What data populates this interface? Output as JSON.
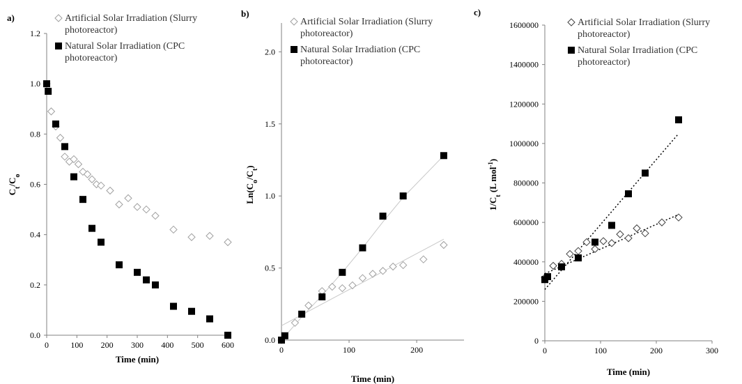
{
  "chart_data": [
    {
      "type": "scatter",
      "panel_label": "a)",
      "xlabel": "Time (min)",
      "ylabel_main": "C",
      "ylabel_sub1": "t",
      "ylabel_mid": "/C",
      "ylabel_sub2": "o",
      "xlim": [
        0,
        600
      ],
      "ylim": [
        0,
        1.2
      ],
      "xticks": [
        0,
        100,
        200,
        300,
        400,
        500,
        600
      ],
      "yticks": [
        0,
        0.2,
        0.4,
        0.6,
        0.8,
        1.0,
        1.2
      ],
      "ytick_labels": [
        "0.0",
        "0.2",
        "0.4",
        "0.6",
        "0.8",
        "1.0",
        "1.2"
      ],
      "legend_position": "top-right",
      "series": [
        {
          "name_line1": "Artificial Solar Irradiation (Slurry",
          "name_line2": "photoreactor)",
          "marker": "open-diamond",
          "color": "#a0a0a0",
          "x": [
            0,
            15,
            30,
            45,
            60,
            75,
            90,
            105,
            120,
            135,
            150,
            165,
            180,
            210,
            240,
            270,
            300,
            330,
            360,
            420,
            480,
            540,
            600
          ],
          "y": [
            1.0,
            0.89,
            0.83,
            0.785,
            0.71,
            0.69,
            0.7,
            0.68,
            0.65,
            0.64,
            0.62,
            0.6,
            0.595,
            0.575,
            0.52,
            0.545,
            0.51,
            0.5,
            0.475,
            0.42,
            0.39,
            0.395,
            0.37
          ]
        },
        {
          "name_line1": "Natural Solar Irradiation (CPC",
          "name_line2": "photoreactor)",
          "marker": "filled-square",
          "color": "#000000",
          "x": [
            0,
            5,
            30,
            60,
            90,
            120,
            150,
            180,
            240,
            300,
            330,
            360,
            420,
            480,
            540,
            600
          ],
          "y": [
            1.0,
            0.97,
            0.84,
            0.75,
            0.63,
            0.54,
            0.425,
            0.37,
            0.28,
            0.25,
            0.22,
            0.2,
            0.115,
            0.095,
            0.065,
            0.0
          ]
        }
      ]
    },
    {
      "type": "scatter",
      "panel_label": "b)",
      "xlabel": "Time (min)",
      "ylabel_main": "Ln(C",
      "ylabel_sub1": "o",
      "ylabel_mid": "/C",
      "ylabel_sub2": "t",
      "ylabel_end": ")",
      "xlim": [
        0,
        270
      ],
      "ylim": [
        0,
        2.2
      ],
      "xticks": [
        0,
        100,
        200
      ],
      "yticks": [
        0,
        0.5,
        1.0,
        1.5,
        2.0
      ],
      "ytick_labels": [
        "0.0",
        "0.5",
        "1.0",
        "1.5",
        "2.0"
      ],
      "legend_position": "top-right",
      "series": [
        {
          "name_line1": "Artificial Solar Irradiation (Slurry",
          "name_line2": "photoreactor)",
          "marker": "open-diamond",
          "color": "#a0a0a0",
          "x": [
            0,
            20,
            40,
            60,
            75,
            90,
            105,
            120,
            135,
            150,
            165,
            180,
            210,
            240
          ],
          "y": [
            0.0,
            0.12,
            0.24,
            0.34,
            0.37,
            0.36,
            0.38,
            0.43,
            0.46,
            0.48,
            0.51,
            0.52,
            0.56,
            0.66
          ],
          "trend": [
            [
              0,
              0.1
            ],
            [
              240,
              0.7
            ]
          ]
        },
        {
          "name_line1": "Natural Solar Irradiation (CPC",
          "name_line2": "photoreactor)",
          "marker": "filled-square",
          "color": "#000000",
          "x": [
            0,
            5,
            30,
            60,
            90,
            120,
            150,
            180,
            240
          ],
          "y": [
            0.0,
            0.03,
            0.18,
            0.3,
            0.47,
            0.64,
            0.86,
            1.0,
            1.28
          ],
          "trend_points": [
            [
              0,
              0.0
            ],
            [
              30,
              0.16
            ],
            [
              60,
              0.31
            ],
            [
              90,
              0.47
            ],
            [
              120,
              0.64
            ],
            [
              150,
              0.82
            ],
            [
              180,
              0.99
            ],
            [
              240,
              1.28
            ]
          ]
        }
      ]
    },
    {
      "type": "scatter",
      "panel_label": "c)",
      "xlabel": "Time (min)",
      "ylabel_main": "1/C",
      "ylabel_sub1": "t",
      "ylabel_mid": " (L mol",
      "ylabel_sup": "-1",
      "ylabel_end": ")",
      "xlim": [
        0,
        300
      ],
      "ylim": [
        0,
        1600000
      ],
      "xticks": [
        0,
        100,
        200,
        300
      ],
      "yticks": [
        0,
        200000,
        400000,
        600000,
        800000,
        1000000,
        1200000,
        1400000,
        1600000
      ],
      "ytick_labels": [
        "0",
        "200000",
        "400000",
        "600000",
        "800000",
        "1000000",
        "1200000",
        "1400000",
        "1600000"
      ],
      "legend_position": "top-right",
      "series": [
        {
          "name_line1": "Artificial Solar Irradiation (Slurry",
          "name_line2": "photoreactor)",
          "marker": "open-diamond",
          "color": "#404040",
          "x": [
            0,
            15,
            30,
            45,
            60,
            75,
            90,
            105,
            120,
            135,
            150,
            165,
            180,
            210,
            240
          ],
          "y": [
            320000,
            380000,
            390000,
            440000,
            455000,
            500000,
            465000,
            505000,
            495000,
            540000,
            520000,
            570000,
            545000,
            600000,
            625000
          ],
          "trend": [
            [
              0,
              340000
            ],
            [
              240,
              640000
            ]
          ]
        },
        {
          "name_line1": "Natural Solar Irradiation (CPC",
          "name_line2": "photoreactor)",
          "marker": "filled-square",
          "color": "#000000",
          "x": [
            0,
            5,
            30,
            60,
            90,
            120,
            150,
            180,
            240
          ],
          "y": [
            310000,
            325000,
            375000,
            420000,
            500000,
            585000,
            745000,
            850000,
            1120000
          ],
          "trend": [
            [
              0,
              260000
            ],
            [
              240,
              1050000
            ]
          ]
        }
      ]
    }
  ]
}
